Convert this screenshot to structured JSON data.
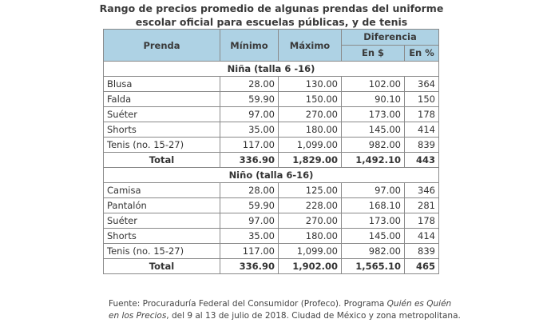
{
  "title_line1": "Rango de precios promedio de algunas prendas del uniforme",
  "title_line2": "escolar oficial para escuelas públicas, y de tenis",
  "headers": {
    "prenda": "Prenda",
    "minimo": "Mínimo",
    "maximo": "Máximo",
    "diferencia": "Diferencia",
    "en_pesos": "En $",
    "en_pct": "En %"
  },
  "sections": [
    {
      "label": "Niña (talla 6 -16)",
      "rows": [
        {
          "prenda": "Blusa",
          "min": "28.00",
          "max": "130.00",
          "dif": "102.00",
          "pct": "364"
        },
        {
          "prenda": "Falda",
          "min": "59.90",
          "max": "150.00",
          "dif": "90.10",
          "pct": "150"
        },
        {
          "prenda": "Suéter",
          "min": "97.00",
          "max": "270.00",
          "dif": "173.00",
          "pct": "178"
        },
        {
          "prenda": "Shorts",
          "min": "35.00",
          "max": "180.00",
          "dif": "145.00",
          "pct": "414"
        },
        {
          "prenda": "Tenis (no. 15-27)",
          "min": "117.00",
          "max": "1,099.00",
          "dif": "982.00",
          "pct": "839"
        }
      ],
      "total": {
        "prenda": "Total",
        "min": "336.90",
        "max": "1,829.00",
        "dif": "1,492.10",
        "pct": "443"
      }
    },
    {
      "label": "Niño (talla 6-16)",
      "rows": [
        {
          "prenda": "Camisa",
          "min": "28.00",
          "max": "125.00",
          "dif": "97.00",
          "pct": "346"
        },
        {
          "prenda": "Pantalón",
          "min": "59.90",
          "max": "228.00",
          "dif": "168.10",
          "pct": "281"
        },
        {
          "prenda": "Suéter",
          "min": "97.00",
          "max": "270.00",
          "dif": "173.00",
          "pct": "178"
        },
        {
          "prenda": "Shorts",
          "min": "35.00",
          "max": "180.00",
          "dif": "145.00",
          "pct": "414"
        },
        {
          "prenda": "Tenis (no. 15-27)",
          "min": "117.00",
          "max": "1,099.00",
          "dif": "982.00",
          "pct": "839"
        }
      ],
      "total": {
        "prenda": "Total",
        "min": "336.90",
        "max": "1,902.00",
        "dif": "1,565.10",
        "pct": "465"
      }
    }
  ],
  "source": {
    "prefix": "Fuente: Procuraduría Federal del Consumidor (Profeco). Programa ",
    "italic1": "Quién es Quién",
    "italic2": "en los Precios",
    "suffix": ", del 9 al 13 de julio de 2018. Ciudad de México y zona metropolitana."
  }
}
